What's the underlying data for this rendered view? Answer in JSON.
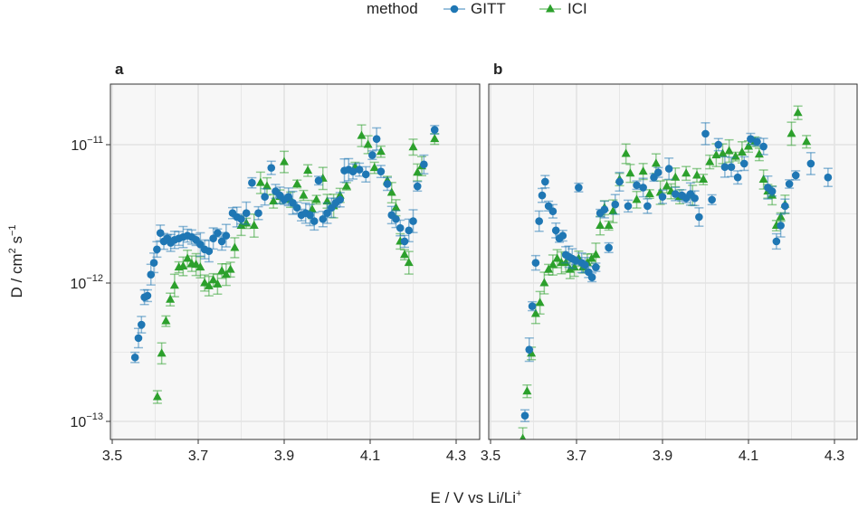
{
  "legend": {
    "title": "method",
    "items": [
      "GITT",
      "ICI"
    ]
  },
  "colors": {
    "gitt": "#1f77b4",
    "ici": "#2ca02c",
    "panel_bg": "#f7f7f7",
    "grid": "#e3e3e3"
  },
  "axes": {
    "xlabel_main": "E / V vs Li/Li",
    "xlabel_sup": "+",
    "ylabel_main": "D / cm",
    "ylabel_sup1": "2",
    "ylabel_mid": " s",
    "ylabel_sup2": "−1",
    "y_tick_base": "10",
    "y_tick_exps": [
      "−11",
      "−12",
      "−13"
    ],
    "x_ticks": [
      "3.5",
      "3.7",
      "3.9",
      "4.1",
      "4.3"
    ]
  },
  "chart_data": [
    {
      "panel": "a",
      "type": "scatter",
      "x_scale": "linear",
      "xlim": [
        3.5,
        4.33
      ],
      "xticks": [
        3.5,
        3.7,
        3.9,
        4.1,
        4.3
      ],
      "y_scale": "log10",
      "ylim": [
        8e-14,
        2.6e-11
      ],
      "yticks": [
        1e-11,
        1e-12,
        1e-13
      ],
      "series": [
        {
          "name": "GITT",
          "points": [
            [
              3.553,
              2.9e-13
            ],
            [
              3.561,
              4e-13
            ],
            [
              3.568,
              5e-13
            ],
            [
              3.575,
              7.9e-13
            ],
            [
              3.582,
              8.1e-13
            ],
            [
              3.59,
              1.15e-12
            ],
            [
              3.597,
              1.4e-12
            ],
            [
              3.604,
              1.75e-12
            ],
            [
              3.612,
              2.3e-12
            ],
            [
              3.62,
              2e-12
            ],
            [
              3.628,
              2.1e-12
            ],
            [
              3.636,
              1.95e-12
            ],
            [
              3.645,
              2.05e-12
            ],
            [
              3.655,
              2.1e-12
            ],
            [
              3.665,
              2.15e-12
            ],
            [
              3.675,
              2.2e-12
            ],
            [
              3.685,
              2.15e-12
            ],
            [
              3.695,
              2.05e-12
            ],
            [
              3.705,
              1.9e-12
            ],
            [
              3.715,
              1.75e-12
            ],
            [
              3.725,
              1.7e-12
            ],
            [
              3.735,
              2.1e-12
            ],
            [
              3.745,
              2.3e-12
            ],
            [
              3.755,
              2e-12
            ],
            [
              3.765,
              2.2e-12
            ],
            [
              3.78,
              3.2e-12
            ],
            [
              3.79,
              3e-12
            ],
            [
              3.8,
              2.9e-12
            ],
            [
              3.812,
              3.2e-12
            ],
            [
              3.825,
              5.3e-12
            ],
            [
              3.84,
              3.2e-12
            ],
            [
              3.855,
              4.2e-12
            ],
            [
              3.87,
              6.8e-12
            ],
            [
              3.88,
              4.6e-12
            ],
            [
              3.89,
              4.3e-12
            ],
            [
              3.9,
              4e-12
            ],
            [
              3.91,
              4.2e-12
            ],
            [
              3.92,
              3.8e-12
            ],
            [
              3.93,
              3.5e-12
            ],
            [
              3.94,
              3.1e-12
            ],
            [
              3.95,
              3.2e-12
            ],
            [
              3.96,
              3.1e-12
            ],
            [
              3.97,
              2.8e-12
            ],
            [
              3.98,
              5.5e-12
            ],
            [
              3.99,
              2.9e-12
            ],
            [
              4.0,
              3.2e-12
            ],
            [
              4.01,
              3.5e-12
            ],
            [
              4.02,
              3.8e-12
            ],
            [
              4.03,
              4e-12
            ],
            [
              4.04,
              6.5e-12
            ],
            [
              4.05,
              6.6e-12
            ],
            [
              4.06,
              6.4e-12
            ],
            [
              4.075,
              6.6e-12
            ],
            [
              4.09,
              6.1e-12
            ],
            [
              4.105,
              8.4e-12
            ],
            [
              4.115,
              1.1e-11
            ],
            [
              4.125,
              6.4e-12
            ],
            [
              4.14,
              5.2e-12
            ],
            [
              4.15,
              3.1e-12
            ],
            [
              4.16,
              2.9e-12
            ],
            [
              4.17,
              2.5e-12
            ],
            [
              4.18,
              2e-12
            ],
            [
              4.19,
              2.4e-12
            ],
            [
              4.2,
              2.8e-12
            ],
            [
              4.21,
              5e-12
            ],
            [
              4.225,
              7.2e-12
            ],
            [
              4.25,
              1.28e-11
            ]
          ]
        },
        {
          "name": "ICI",
          "points": [
            [
              3.605,
              1.5e-13
            ],
            [
              3.615,
              3.1e-13
            ],
            [
              3.625,
              5.3e-13
            ],
            [
              3.635,
              7.6e-13
            ],
            [
              3.645,
              9.6e-13
            ],
            [
              3.655,
              1.3e-12
            ],
            [
              3.665,
              1.32e-12
            ],
            [
              3.675,
              1.5e-12
            ],
            [
              3.685,
              1.38e-12
            ],
            [
              3.695,
              1.36e-12
            ],
            [
              3.705,
              1.3e-12
            ],
            [
              3.715,
              1e-12
            ],
            [
              3.725,
              9.5e-13
            ],
            [
              3.735,
              1.05e-12
            ],
            [
              3.745,
              9.8e-13
            ],
            [
              3.755,
              1.22e-12
            ],
            [
              3.765,
              1.15e-12
            ],
            [
              3.775,
              1.25e-12
            ],
            [
              3.785,
              1.8e-12
            ],
            [
              3.8,
              2.6e-12
            ],
            [
              3.812,
              2.7e-12
            ],
            [
              3.83,
              2.6e-12
            ],
            [
              3.845,
              5.3e-12
            ],
            [
              3.86,
              5e-12
            ],
            [
              3.875,
              3.9e-12
            ],
            [
              3.89,
              4.2e-12
            ],
            [
              3.9,
              7.5e-12
            ],
            [
              3.915,
              4e-12
            ],
            [
              3.93,
              5.2e-12
            ],
            [
              3.945,
              4.3e-12
            ],
            [
              3.955,
              6.5e-12
            ],
            [
              3.965,
              3.4e-12
            ],
            [
              3.975,
              4e-12
            ],
            [
              3.99,
              5.7e-12
            ],
            [
              4.0,
              3.9e-12
            ],
            [
              4.015,
              3.6e-12
            ],
            [
              4.03,
              4.3e-12
            ],
            [
              4.045,
              5e-12
            ],
            [
              4.065,
              6.9e-12
            ],
            [
              4.08,
              1.16e-11
            ],
            [
              4.095,
              1e-11
            ],
            [
              4.11,
              6.8e-12
            ],
            [
              4.125,
              8.9e-12
            ],
            [
              4.14,
              5.5e-12
            ],
            [
              4.15,
              4.5e-12
            ],
            [
              4.16,
              3.5e-12
            ],
            [
              4.17,
              2e-12
            ],
            [
              4.18,
              1.6e-12
            ],
            [
              4.19,
              1.4e-12
            ],
            [
              4.2,
              9.6e-12
            ],
            [
              4.21,
              6.3e-12
            ],
            [
              4.22,
              7e-12
            ],
            [
              4.25,
              1.1e-11
            ]
          ]
        }
      ]
    },
    {
      "panel": "b",
      "type": "scatter",
      "x_scale": "linear",
      "xlim": [
        3.5,
        4.33
      ],
      "xticks": [
        3.5,
        3.7,
        3.9,
        4.1,
        4.3
      ],
      "y_scale": "log10",
      "ylim": [
        8e-14,
        2.6e-11
      ],
      "yticks": [
        1e-11,
        1e-12,
        1e-13
      ],
      "series": [
        {
          "name": "GITT",
          "points": [
            [
              3.58,
              1.1e-13
            ],
            [
              3.59,
              3.3e-13
            ],
            [
              3.597,
              6.8e-13
            ],
            [
              3.605,
              1.4e-12
            ],
            [
              3.613,
              2.8e-12
            ],
            [
              3.62,
              4.3e-12
            ],
            [
              3.627,
              5.4e-12
            ],
            [
              3.635,
              3.6e-12
            ],
            [
              3.645,
              3.3e-12
            ],
            [
              3.652,
              2.4e-12
            ],
            [
              3.66,
              2.1e-12
            ],
            [
              3.668,
              2.2e-12
            ],
            [
              3.675,
              1.6e-12
            ],
            [
              3.682,
              1.55e-12
            ],
            [
              3.69,
              1.5e-12
            ],
            [
              3.698,
              1.45e-12
            ],
            [
              3.705,
              4.9e-12
            ],
            [
              3.712,
              1.4e-12
            ],
            [
              3.72,
              1.35e-12
            ],
            [
              3.728,
              1.2e-12
            ],
            [
              3.736,
              1.1e-12
            ],
            [
              3.745,
              1.3e-12
            ],
            [
              3.755,
              3.2e-12
            ],
            [
              3.765,
              3.4e-12
            ],
            [
              3.775,
              1.8e-12
            ],
            [
              3.79,
              3.7e-12
            ],
            [
              3.8,
              5.4e-12
            ],
            [
              3.82,
              3.6e-12
            ],
            [
              3.84,
              5.1e-12
            ],
            [
              3.855,
              4.9e-12
            ],
            [
              3.865,
              3.6e-12
            ],
            [
              3.88,
              5.8e-12
            ],
            [
              3.89,
              6.3e-12
            ],
            [
              3.9,
              4.2e-12
            ],
            [
              3.915,
              6.7e-12
            ],
            [
              3.93,
              4.4e-12
            ],
            [
              3.945,
              4.3e-12
            ],
            [
              3.955,
              4.1e-12
            ],
            [
              3.965,
              4.4e-12
            ],
            [
              3.975,
              4.1e-12
            ],
            [
              3.985,
              3e-12
            ],
            [
              4.0,
              1.2e-11
            ],
            [
              4.015,
              4e-12
            ],
            [
              4.03,
              1e-11
            ],
            [
              4.045,
              6.9e-12
            ],
            [
              4.06,
              6.9e-12
            ],
            [
              4.075,
              5.8e-12
            ],
            [
              4.09,
              7.3e-12
            ],
            [
              4.105,
              1.1e-11
            ],
            [
              4.12,
              1.05e-11
            ],
            [
              4.135,
              9.7e-12
            ],
            [
              4.145,
              4.9e-12
            ],
            [
              4.155,
              4.6e-12
            ],
            [
              4.165,
              2e-12
            ],
            [
              4.175,
              2.6e-12
            ],
            [
              4.185,
              3.6e-12
            ],
            [
              4.195,
              5.2e-12
            ],
            [
              4.21,
              6e-12
            ],
            [
              4.245,
              7.3e-12
            ],
            [
              4.285,
              5.8e-12
            ]
          ]
        },
        {
          "name": "ICI",
          "points": [
            [
              3.575,
              7.5e-14
            ],
            [
              3.585,
              1.65e-13
            ],
            [
              3.595,
              3.1e-13
            ],
            [
              3.605,
              6e-13
            ],
            [
              3.615,
              7.2e-13
            ],
            [
              3.625,
              1e-12
            ],
            [
              3.635,
              1.25e-12
            ],
            [
              3.645,
              1.35e-12
            ],
            [
              3.655,
              1.5e-12
            ],
            [
              3.665,
              1.4e-12
            ],
            [
              3.675,
              1.4e-12
            ],
            [
              3.685,
              1.25e-12
            ],
            [
              3.695,
              1.3e-12
            ],
            [
              3.705,
              1.5e-12
            ],
            [
              3.715,
              1.3e-12
            ],
            [
              3.725,
              1.4e-12
            ],
            [
              3.735,
              1.5e-12
            ],
            [
              3.745,
              1.6e-12
            ],
            [
              3.755,
              2.6e-12
            ],
            [
              3.765,
              3.5e-12
            ],
            [
              3.775,
              2.6e-12
            ],
            [
              3.785,
              3.3e-12
            ],
            [
              3.8,
              5.6e-12
            ],
            [
              3.815,
              8.6e-12
            ],
            [
              3.825,
              6.2e-12
            ],
            [
              3.84,
              4e-12
            ],
            [
              3.855,
              6.4e-12
            ],
            [
              3.87,
              4.4e-12
            ],
            [
              3.885,
              7.3e-12
            ],
            [
              3.895,
              4.5e-12
            ],
            [
              3.91,
              5e-12
            ],
            [
              3.92,
              4.6e-12
            ],
            [
              3.93,
              5.8e-12
            ],
            [
              3.94,
              4.2e-12
            ],
            [
              3.955,
              6.2e-12
            ],
            [
              3.97,
              4.3e-12
            ],
            [
              3.98,
              6e-12
            ],
            [
              3.995,
              5.6e-12
            ],
            [
              4.01,
              7.5e-12
            ],
            [
              4.025,
              8.4e-12
            ],
            [
              4.04,
              8.6e-12
            ],
            [
              4.055,
              9e-12
            ],
            [
              4.07,
              8.2e-12
            ],
            [
              4.085,
              8.8e-12
            ],
            [
              4.1,
              9.7e-12
            ],
            [
              4.115,
              1.05e-11
            ],
            [
              4.125,
              8.5e-12
            ],
            [
              4.135,
              5.6e-12
            ],
            [
              4.145,
              4.6e-12
            ],
            [
              4.155,
              4.3e-12
            ],
            [
              4.165,
              2.6e-12
            ],
            [
              4.175,
              3e-12
            ],
            [
              4.185,
              3.7e-12
            ],
            [
              4.2,
              1.2e-11
            ],
            [
              4.215,
              1.7e-11
            ],
            [
              4.235,
              1.05e-11
            ]
          ]
        }
      ]
    }
  ]
}
